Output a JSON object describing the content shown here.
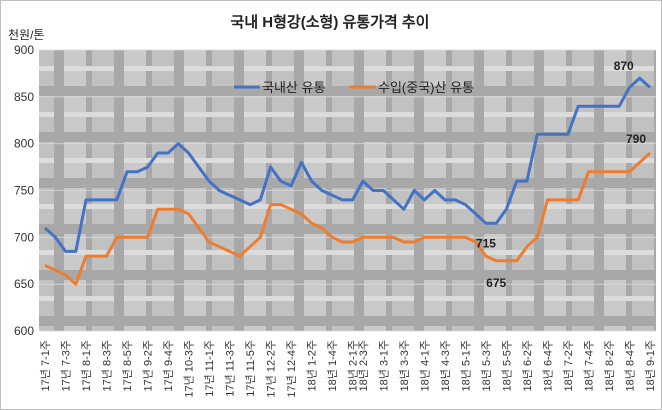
{
  "chart_data": {
    "type": "line",
    "title": "국내 H형강(소형) 유통가격 추이",
    "ylabel": "천원/톤",
    "ylim": [
      600,
      900
    ],
    "yticks": [
      600,
      650,
      700,
      750,
      800,
      850,
      900
    ],
    "x_tick_labels": [
      "17년 7-1주",
      "17년 7-3주",
      "17년 8-1주",
      "17년 8-3주",
      "17년 8-5주",
      "17년 9-2주",
      "17년 9-4주",
      "17년 10-3주",
      "17년 11-1주",
      "17년 11-3주",
      "17년 11-5주",
      "17년 12-2주",
      "17년 12-4주",
      "18년 1-2주",
      "18년 1-4주",
      "18년 2-1주",
      "18년 2-3주",
      "18년 3-1주",
      "18년 3-3주",
      "18년 4-1주",
      "18년 4-3주",
      "18년 5-1주",
      "18년 5-3주",
      "18년 5-5주",
      "18년 6-2주",
      "18년 6-4주",
      "18년 7-2주",
      "18년 7-4주",
      "18년 8-2주",
      "18년 8-4주",
      "18년 9-1주"
    ],
    "series": [
      {
        "name": "국내산 유통",
        "color": "#4472c4",
        "values": [
          710,
          700,
          685,
          685,
          740,
          740,
          740,
          740,
          770,
          770,
          775,
          790,
          790,
          800,
          790,
          775,
          760,
          750,
          745,
          740,
          735,
          740,
          775,
          760,
          755,
          780,
          760,
          750,
          745,
          740,
          740,
          760,
          750,
          750,
          740,
          730,
          750,
          740,
          750,
          740,
          740,
          735,
          725,
          715,
          715,
          730,
          760,
          760,
          810,
          810,
          810,
          810,
          840,
          840,
          840,
          840,
          840,
          860,
          870,
          860
        ]
      },
      {
        "name": "수입(중국)산 유통",
        "color": "#ed7d31",
        "values": [
          670,
          665,
          660,
          650,
          680,
          680,
          680,
          700,
          700,
          700,
          700,
          730,
          730,
          730,
          725,
          710,
          695,
          690,
          685,
          680,
          690,
          700,
          735,
          735,
          730,
          725,
          715,
          710,
          700,
          695,
          695,
          700,
          700,
          700,
          700,
          695,
          695,
          700,
          700,
          700,
          700,
          700,
          695,
          680,
          675,
          675,
          675,
          690,
          700,
          740,
          740,
          740,
          740,
          770,
          770,
          770,
          770,
          770,
          780,
          790
        ]
      }
    ],
    "annotations": [
      {
        "series": 0,
        "index": 58,
        "text": "870"
      },
      {
        "series": 0,
        "index": 43,
        "text": "715"
      },
      {
        "series": 1,
        "index": 59,
        "text": "790"
      },
      {
        "series": 1,
        "index": 44,
        "text": "675"
      }
    ]
  }
}
